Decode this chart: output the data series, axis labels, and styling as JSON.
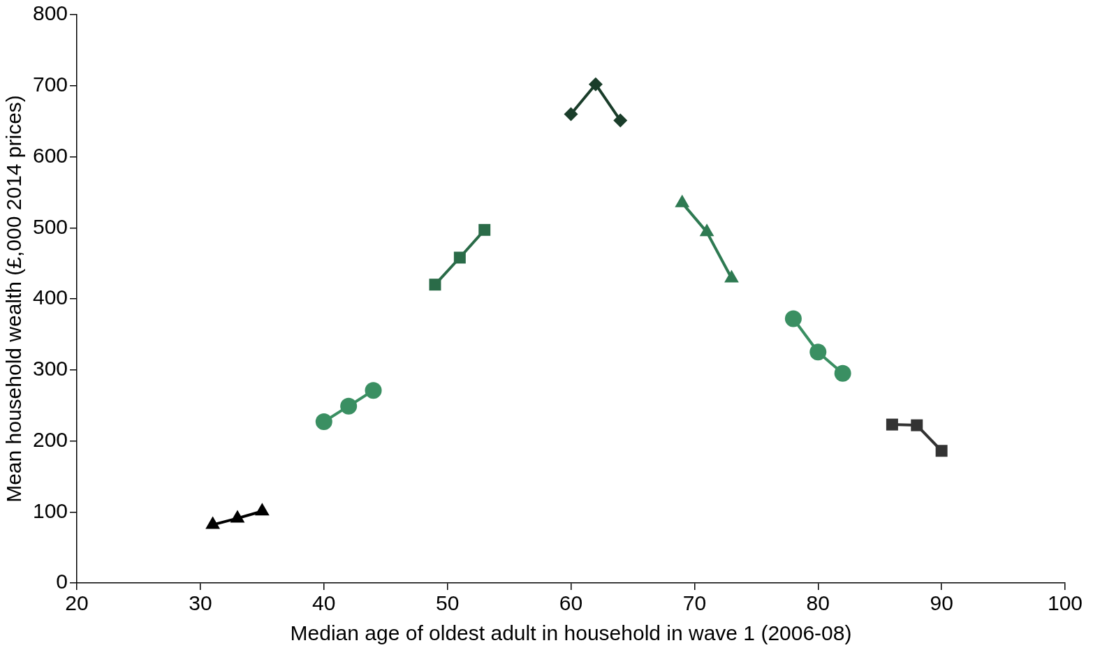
{
  "chart_data": {
    "type": "line",
    "xlabel": "Median age of oldest adult in household in wave 1 (2006-08)",
    "ylabel": "Mean household wealth (£,000 2014 prices)",
    "xlim": [
      20,
      100
    ],
    "xticks": [
      20,
      30,
      40,
      50,
      60,
      70,
      80,
      90,
      100
    ],
    "ylim": [
      0,
      800
    ],
    "yticks": [
      0,
      100,
      200,
      300,
      400,
      500,
      600,
      700,
      800
    ],
    "grid": false,
    "legend": false,
    "line_style": "solid",
    "series": [
      {
        "color": "#000000",
        "marker": "triangle",
        "x": [
          31,
          33,
          35
        ],
        "values": [
          82,
          91,
          101
        ]
      },
      {
        "color": "#3a8f62",
        "marker": "circle",
        "x": [
          40,
          42,
          44
        ],
        "values": [
          227,
          249,
          271
        ]
      },
      {
        "color": "#2a6b48",
        "marker": "square",
        "x": [
          49,
          51,
          53
        ],
        "values": [
          420,
          458,
          497
        ]
      },
      {
        "color": "#1a3d2a",
        "marker": "diamond",
        "x": [
          60,
          62,
          64
        ],
        "values": [
          660,
          702,
          651
        ]
      },
      {
        "color": "#2e7a52",
        "marker": "triangle",
        "x": [
          69,
          71,
          73
        ],
        "values": [
          535,
          494,
          429
        ]
      },
      {
        "color": "#3a8f62",
        "marker": "circle",
        "x": [
          78,
          80,
          82
        ],
        "values": [
          372,
          325,
          295
        ]
      },
      {
        "color": "#333333",
        "marker": "square",
        "x": [
          86,
          88,
          90
        ],
        "values": [
          223,
          222,
          186
        ]
      }
    ]
  }
}
